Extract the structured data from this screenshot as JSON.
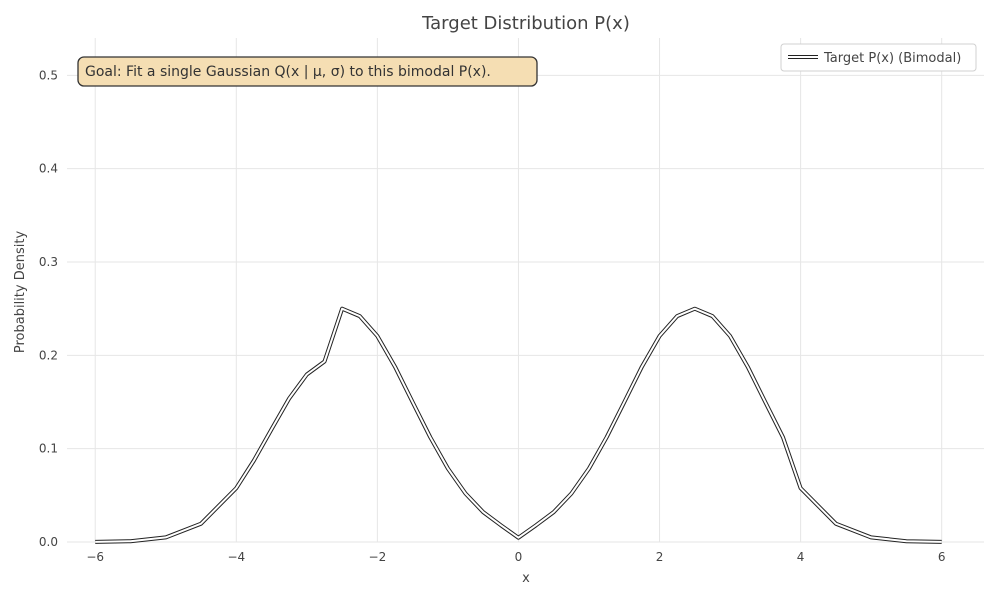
{
  "chart_data": {
    "type": "line",
    "title": "Target Distribution P(x)",
    "xlabel": "x",
    "ylabel": "Probability Density",
    "xlim": [
      -6.4,
      6.6
    ],
    "ylim": [
      0,
      0.54
    ],
    "x_ticks": [
      -6,
      -4,
      -2,
      0,
      2,
      4,
      6
    ],
    "x_tick_labels": [
      "−6",
      "−4",
      "−2",
      "0",
      "2",
      "4",
      "6"
    ],
    "y_ticks": [
      0.0,
      0.1,
      0.2,
      0.3,
      0.4,
      0.5
    ],
    "y_tick_labels": [
      "0.0",
      "0.1",
      "0.2",
      "0.3",
      "0.4",
      "0.5"
    ],
    "grid": true,
    "legend": {
      "position": "top-right",
      "entries": [
        "Target P(x) (Bimodal)"
      ]
    },
    "annotation": "Goal: Fit a single Gaussian Q(x | μ, σ) to this bimodal P(x).",
    "series": [
      {
        "name": "Target P(x) (Bimodal)",
        "color": "#222222",
        "x": [
          -6.0,
          -5.5,
          -5.0,
          -4.5,
          -4.0,
          -3.75,
          -3.5,
          -3.25,
          -3.0,
          -2.75,
          -2.5,
          -2.25,
          -2.0,
          -1.75,
          -1.5,
          -1.25,
          -1.0,
          -0.75,
          -0.5,
          -0.25,
          0.0,
          0.25,
          0.5,
          0.75,
          1.0,
          1.25,
          1.5,
          1.75,
          2.0,
          2.25,
          2.5,
          2.75,
          3.0,
          3.25,
          3.5,
          3.75,
          4.0,
          4.5,
          5.0,
          5.5,
          6.0
        ],
        "y": [
          0.0001,
          0.0009,
          0.0049,
          0.0196,
          0.0578,
          0.0873,
          0.121,
          0.1539,
          0.1795,
          0.1934,
          0.25,
          0.242,
          0.2206,
          0.1878,
          0.1499,
          0.1122,
          0.0787,
          0.052,
          0.032,
          0.018,
          0.0046,
          0.018,
          0.032,
          0.052,
          0.0787,
          0.1122,
          0.1499,
          0.1878,
          0.2206,
          0.242,
          0.25,
          0.242,
          0.2206,
          0.1878,
          0.1499,
          0.1122,
          0.0578,
          0.0196,
          0.0049,
          0.0009,
          0.0001
        ]
      }
    ]
  }
}
